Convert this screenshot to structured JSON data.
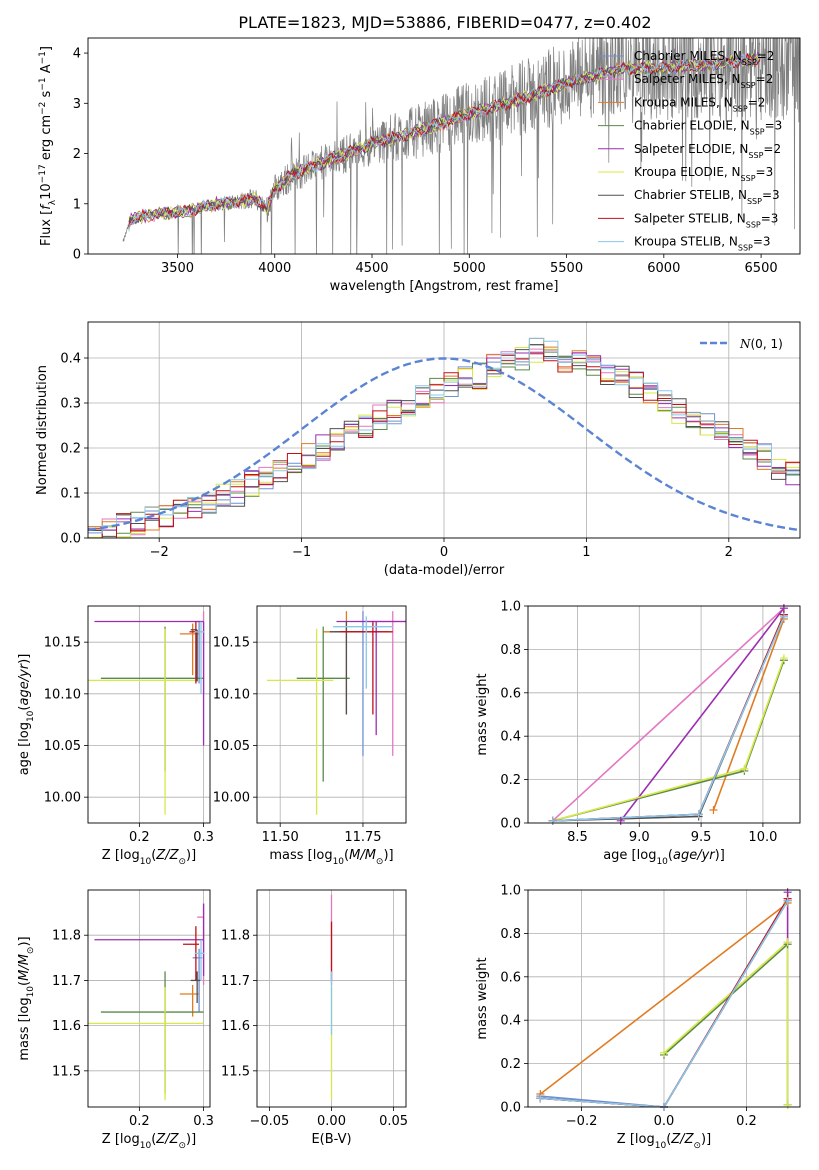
{
  "figure": {
    "title": "PLATE=1823, MJD=53886, FIBERID=0477, z=0.402"
  },
  "models": [
    {
      "name": "Chabrier MILES, N_SSP=2",
      "label": "Chabrier MILES, N",
      "sub": "SSP",
      "suffix": "=2",
      "color": "#6e8fd4"
    },
    {
      "name": "Salpeter MILES, N_SSP=2",
      "label": "Salpeter MILES, N",
      "sub": "SSP",
      "suffix": "=2",
      "color": "#e377c2"
    },
    {
      "name": "Kroupa MILES, N_SSP=2",
      "label": "Kroupa MILES, N",
      "sub": "SSP",
      "suffix": "=2",
      "color": "#e07b20"
    },
    {
      "name": "Chabrier ELODIE, N_SSP=3",
      "label": "Chabrier ELODIE, N",
      "sub": "SSP",
      "suffix": "=3",
      "color": "#5a8a4a"
    },
    {
      "name": "Salpeter ELODIE, N_SSP=2",
      "label": "Salpeter ELODIE, N",
      "sub": "SSP",
      "suffix": "=2",
      "color": "#9b2eb0"
    },
    {
      "name": "Kroupa ELODIE, N_SSP=3",
      "label": "Kroupa ELODIE, N",
      "sub": "SSP",
      "suffix": "=3",
      "color": "#d8e84a"
    },
    {
      "name": "Chabrier STELIB, N_SSP=3",
      "label": "Chabrier STELIB, N",
      "sub": "SSP",
      "suffix": "=3",
      "color": "#505050"
    },
    {
      "name": "Salpeter STELIB, N_SSP=3",
      "label": "Salpeter STELIB, N",
      "sub": "SSP",
      "suffix": "=3",
      "color": "#c0101a"
    },
    {
      "name": "Kroupa STELIB, N_SSP=3",
      "label": "Kroupa STELIB, N",
      "sub": "SSP",
      "suffix": "=3",
      "color": "#88c8e8"
    }
  ],
  "chart_data": [
    {
      "id": "spectrum",
      "type": "line",
      "xlabel": "wavelength [Angstrom, rest frame]",
      "ylabel": "Flux [f_λ 10^-17 erg cm^-2 s^-1 A^-1]",
      "xlim": [
        3040,
        6700
      ],
      "ylim": [
        0,
        4.3
      ],
      "xticks": [
        3500,
        4000,
        4500,
        5000,
        5500,
        6000,
        6500
      ],
      "yticks": [
        0,
        1,
        2,
        3,
        4
      ],
      "data_color": "#808080",
      "data_x_range": [
        3220,
        6700
      ],
      "model_shape": [
        [
          3200,
          0.0
        ],
        [
          3260,
          0.7
        ],
        [
          3400,
          0.8
        ],
        [
          3550,
          0.85
        ],
        [
          3700,
          1.0
        ],
        [
          3900,
          1.1
        ],
        [
          3960,
          0.9
        ],
        [
          4000,
          1.3
        ],
        [
          4100,
          1.6
        ],
        [
          4300,
          1.9
        ],
        [
          4500,
          2.2
        ],
        [
          4700,
          2.4
        ],
        [
          4860,
          2.6
        ],
        [
          5000,
          2.8
        ],
        [
          5200,
          3.0
        ],
        [
          5500,
          3.4
        ],
        [
          5800,
          3.7
        ],
        [
          6000,
          3.7
        ],
        [
          6300,
          3.8
        ],
        [
          6500,
          3.9
        ]
      ],
      "legend_loc": "upper right"
    },
    {
      "id": "residuals",
      "type": "line",
      "xlabel": "(data-model)/error",
      "ylabel": "Normed distribution",
      "xlim": [
        -2.5,
        2.5
      ],
      "ylim": [
        0,
        0.48
      ],
      "xticks": [
        -2,
        -1,
        0,
        1,
        2
      ],
      "yticks": [
        0.0,
        0.1,
        0.2,
        0.3,
        0.4
      ],
      "grid": true,
      "gaussian": {
        "label": "N(0, 1)",
        "mu": 0,
        "sigma": 1,
        "color": "#5b84d4"
      },
      "hist_bin_width": 0.1,
      "hist_shape": [
        0.02,
        0.02,
        0.03,
        0.03,
        0.04,
        0.05,
        0.06,
        0.07,
        0.08,
        0.09,
        0.1,
        0.12,
        0.13,
        0.15,
        0.16,
        0.18,
        0.2,
        0.22,
        0.24,
        0.25,
        0.27,
        0.28,
        0.3,
        0.31,
        0.33,
        0.34,
        0.36,
        0.36,
        0.38,
        0.4,
        0.4,
        0.42,
        0.42,
        0.39,
        0.39,
        0.38,
        0.37,
        0.36,
        0.34,
        0.33,
        0.3,
        0.28,
        0.26,
        0.25,
        0.24,
        0.22,
        0.2,
        0.18,
        0.16,
        0.14,
        0.12
      ],
      "legend_loc": "upper right"
    },
    {
      "id": "age_vs_Z",
      "type": "scatter",
      "xlabel": "Z [log10(Z/Z⊙)]",
      "ylabel": "age [log10(age/yr)]",
      "xlim": [
        0.12,
        0.31
      ],
      "ylim": [
        9.975,
        10.185
      ],
      "xticks": [
        0.2,
        0.3
      ],
      "yticks": [
        10.0,
        10.05,
        10.1,
        10.15
      ],
      "grid": true,
      "errorbars": [
        {
          "model": 0,
          "x": 0.293,
          "y": 10.16,
          "xerr": [
            0.01,
            0.005
          ],
          "yerr": [
            0.05,
            0.01
          ]
        },
        {
          "model": 1,
          "x": 0.3,
          "y": 10.17,
          "xerr": [
            0.01,
            0.0
          ],
          "yerr": [
            0.07,
            0.01
          ]
        },
        {
          "model": 2,
          "x": 0.283,
          "y": 10.158,
          "xerr": [
            0.02,
            0.01
          ],
          "yerr": [
            0.04,
            0.01
          ]
        },
        {
          "model": 3,
          "x": 0.24,
          "y": 10.115,
          "xerr": [
            0.1,
            0.06
          ],
          "yerr": [
            0.09,
            0.05
          ]
        },
        {
          "model": 4,
          "x": 0.3,
          "y": 10.17,
          "xerr": [
            0.17,
            0.0
          ],
          "yerr": [
            0.12,
            0.0
          ]
        },
        {
          "model": 5,
          "x": 0.24,
          "y": 10.113,
          "xerr": [
            0.13,
            0.05
          ],
          "yerr": [
            0.13,
            0.05
          ]
        },
        {
          "model": 6,
          "x": 0.29,
          "y": 10.162,
          "xerr": [
            0.01,
            0.0
          ],
          "yerr": [
            0.05,
            0.0
          ]
        },
        {
          "model": 7,
          "x": 0.288,
          "y": 10.16,
          "xerr": [
            0.01,
            0.005
          ],
          "yerr": [
            0.05,
            0.01
          ]
        },
        {
          "model": 8,
          "x": 0.296,
          "y": 10.16,
          "xerr": [
            0.01,
            0.005
          ],
          "yerr": [
            0.06,
            0.01
          ]
        }
      ]
    },
    {
      "id": "age_vs_mass",
      "type": "scatter",
      "xlabel": "mass [log10(M/M⊙)]",
      "ylabel": "",
      "xlim": [
        11.43,
        11.88
      ],
      "ylim": [
        9.975,
        10.185
      ],
      "xticks": [
        11.5,
        11.75
      ],
      "yticks": [
        10.0,
        10.05,
        10.1,
        10.15
      ],
      "grid": true,
      "errorbars": [
        {
          "model": 0,
          "x": 11.75,
          "y": 10.16,
          "xerr": [
            0.08,
            0.08
          ],
          "yerr": [
            0.12,
            0.02
          ]
        },
        {
          "model": 1,
          "x": 11.84,
          "y": 10.17,
          "xerr": [
            0.1,
            0.1
          ],
          "yerr": [
            0.13,
            0.01
          ]
        },
        {
          "model": 2,
          "x": 11.7,
          "y": 10.16,
          "xerr": [
            0.07,
            0.07
          ],
          "yerr": [
            0.08,
            0.02
          ]
        },
        {
          "model": 3,
          "x": 11.63,
          "y": 10.115,
          "xerr": [
            0.08,
            0.08
          ],
          "yerr": [
            0.1,
            0.05
          ]
        },
        {
          "model": 4,
          "x": 11.79,
          "y": 10.17,
          "xerr": [
            0.12,
            0.12
          ],
          "yerr": [
            0.11,
            0.0
          ]
        },
        {
          "model": 5,
          "x": 11.61,
          "y": 10.113,
          "xerr": [
            0.15,
            0.05
          ],
          "yerr": [
            0.13,
            0.05
          ]
        },
        {
          "model": 6,
          "x": 11.7,
          "y": 10.16,
          "xerr": [
            0.05,
            0.05
          ],
          "yerr": [
            0.08,
            0.01
          ]
        },
        {
          "model": 7,
          "x": 11.78,
          "y": 10.16,
          "xerr": [
            0.1,
            0.06
          ],
          "yerr": [
            0.08,
            0.01
          ]
        },
        {
          "model": 8,
          "x": 11.76,
          "y": 10.165,
          "xerr": [
            0.1,
            0.08
          ],
          "yerr": [
            0.06,
            0.01
          ]
        }
      ]
    },
    {
      "id": "weight_vs_age",
      "type": "line",
      "xlabel": "age [log10(age/yr)]",
      "ylabel": "mass weight",
      "xlim": [
        8.1,
        10.3
      ],
      "ylim": [
        0,
        1.0
      ],
      "xticks": [
        8.5,
        9.0,
        9.5,
        10.0
      ],
      "yticks": [
        0.0,
        0.2,
        0.4,
        0.6,
        0.8,
        1.0
      ],
      "grid": true,
      "series": [
        {
          "model": 0,
          "x": [
            8.3,
            9.48,
            10.17
          ],
          "y": [
            0.01,
            0.04,
            0.95
          ]
        },
        {
          "model": 1,
          "x": [
            8.3,
            10.17
          ],
          "y": [
            0.01,
            0.99
          ]
        },
        {
          "model": 2,
          "x": [
            9.6,
            10.17
          ],
          "y": [
            0.06,
            0.94
          ]
        },
        {
          "model": 3,
          "x": [
            8.3,
            9.85,
            10.17
          ],
          "y": [
            0.01,
            0.24,
            0.75
          ]
        },
        {
          "model": 4,
          "x": [
            8.85,
            10.17
          ],
          "y": [
            0.01,
            0.99
          ]
        },
        {
          "model": 5,
          "x": [
            8.3,
            9.85,
            10.17
          ],
          "y": [
            0.01,
            0.25,
            0.76
          ]
        },
        {
          "model": 6,
          "x": [
            8.3,
            9.48,
            10.17
          ],
          "y": [
            0.01,
            0.03,
            0.96
          ]
        },
        {
          "model": 7,
          "x": [
            8.3,
            9.48,
            10.17
          ],
          "y": [
            0.01,
            0.04,
            0.96
          ]
        },
        {
          "model": 8,
          "x": [
            8.3,
            9.48,
            10.17
          ],
          "y": [
            0.01,
            0.04,
            0.95
          ]
        }
      ]
    },
    {
      "id": "mass_vs_Z",
      "type": "scatter",
      "xlabel": "Z [log10(Z/Z⊙)]",
      "ylabel": "mass [log10(M/M⊙)]",
      "xlim": [
        0.12,
        0.31
      ],
      "ylim": [
        11.42,
        11.9
      ],
      "xticks": [
        0.2,
        0.3
      ],
      "yticks": [
        11.5,
        11.6,
        11.7,
        11.8
      ],
      "grid": true,
      "errorbars": [
        {
          "model": 0,
          "x": 0.293,
          "y": 11.75,
          "xerr": [
            0.01,
            0.005
          ],
          "yerr": [
            0.12,
            0.02
          ]
        },
        {
          "model": 1,
          "x": 0.3,
          "y": 11.84,
          "xerr": [
            0.01,
            0.0
          ],
          "yerr": [
            0.15,
            0.03
          ]
        },
        {
          "model": 2,
          "x": 0.283,
          "y": 11.67,
          "xerr": [
            0.02,
            0.01
          ],
          "yerr": [
            0.05,
            0.02
          ]
        },
        {
          "model": 3,
          "x": 0.24,
          "y": 11.63,
          "xerr": [
            0.1,
            0.06
          ],
          "yerr": [
            0.18,
            0.09
          ]
        },
        {
          "model": 4,
          "x": 0.3,
          "y": 11.79,
          "xerr": [
            0.17,
            0.0
          ],
          "yerr": [
            0.08,
            0.08
          ]
        },
        {
          "model": 5,
          "x": 0.24,
          "y": 11.605,
          "xerr": [
            0.13,
            0.06
          ],
          "yerr": [
            0.17,
            0.08
          ]
        },
        {
          "model": 6,
          "x": 0.29,
          "y": 11.7,
          "xerr": [
            0.01,
            0.005
          ],
          "yerr": [
            0.05,
            0.02
          ]
        },
        {
          "model": 7,
          "x": 0.288,
          "y": 11.78,
          "xerr": [
            0.02,
            0.005
          ],
          "yerr": [
            0.08,
            0.04
          ]
        },
        {
          "model": 8,
          "x": 0.296,
          "y": 11.76,
          "xerr": [
            0.01,
            0.005
          ],
          "yerr": [
            0.06,
            0.03
          ]
        }
      ]
    },
    {
      "id": "mass_vs_ebv",
      "type": "scatter",
      "xlabel": "E(B-V)",
      "ylabel": "",
      "xlim": [
        -0.06,
        0.06
      ],
      "ylim": [
        11.42,
        11.9
      ],
      "xticks": [
        -0.05,
        0.0,
        0.05
      ],
      "yticks": [
        11.5,
        11.6,
        11.7,
        11.8
      ],
      "grid": true,
      "errorbars": [
        {
          "model": 1,
          "x": 0.0,
          "y": 11.84,
          "xerr": [
            0,
            0
          ],
          "yerr": [
            0.15,
            0.05
          ]
        },
        {
          "model": 7,
          "x": 0.0,
          "y": 11.78,
          "xerr": [
            0,
            0
          ],
          "yerr": [
            0.08,
            0.05
          ]
        },
        {
          "model": 5,
          "x": 0.0,
          "y": 11.605,
          "xerr": [
            0,
            0
          ],
          "yerr": [
            0.17,
            0.08
          ]
        },
        {
          "model": 8,
          "x": 0.0,
          "y": 11.7,
          "xerr": [
            0,
            0
          ],
          "yerr": [
            0.12,
            0.02
          ]
        }
      ]
    },
    {
      "id": "weight_vs_Z",
      "type": "line",
      "xlabel": "Z [log10(Z/Z⊙)]",
      "ylabel": "mass weight",
      "xlim": [
        -0.33,
        0.33
      ],
      "ylim": [
        0,
        1.0
      ],
      "xticks": [
        -0.2,
        0.0,
        0.2
      ],
      "yticks": [
        0.0,
        0.2,
        0.4,
        0.6,
        0.8,
        1.0
      ],
      "grid": true,
      "series": [
        {
          "model": 0,
          "x": [
            -0.3,
            0.0,
            0.3
          ],
          "y": [
            0.05,
            0.0,
            0.95
          ]
        },
        {
          "model": 1,
          "x": [
            -0.3,
            0.0,
            0.3
          ],
          "y": [
            0.04,
            0.0,
            0.96
          ]
        },
        {
          "model": 2,
          "x": [
            -0.3,
            0.3
          ],
          "y": [
            0.06,
            0.94
          ]
        },
        {
          "model": 3,
          "x": [
            0.0,
            0.3,
            0.3
          ],
          "y": [
            0.24,
            0.75,
            0.01
          ]
        },
        {
          "model": 4,
          "x": [
            0.3,
            0.3
          ],
          "y": [
            0.76,
            0.99
          ]
        },
        {
          "model": 5,
          "x": [
            0.0,
            0.3,
            0.3
          ],
          "y": [
            0.25,
            0.76,
            0.01
          ]
        },
        {
          "model": 6,
          "x": [
            -0.3,
            0.0,
            0.3
          ],
          "y": [
            0.04,
            0.0,
            0.95
          ]
        },
        {
          "model": 7,
          "x": [
            -0.3,
            0.0,
            0.3
          ],
          "y": [
            0.04,
            0.0,
            0.96
          ]
        },
        {
          "model": 8,
          "x": [
            -0.3,
            0.0,
            0.3
          ],
          "y": [
            0.04,
            0.0,
            0.95
          ]
        }
      ]
    }
  ]
}
